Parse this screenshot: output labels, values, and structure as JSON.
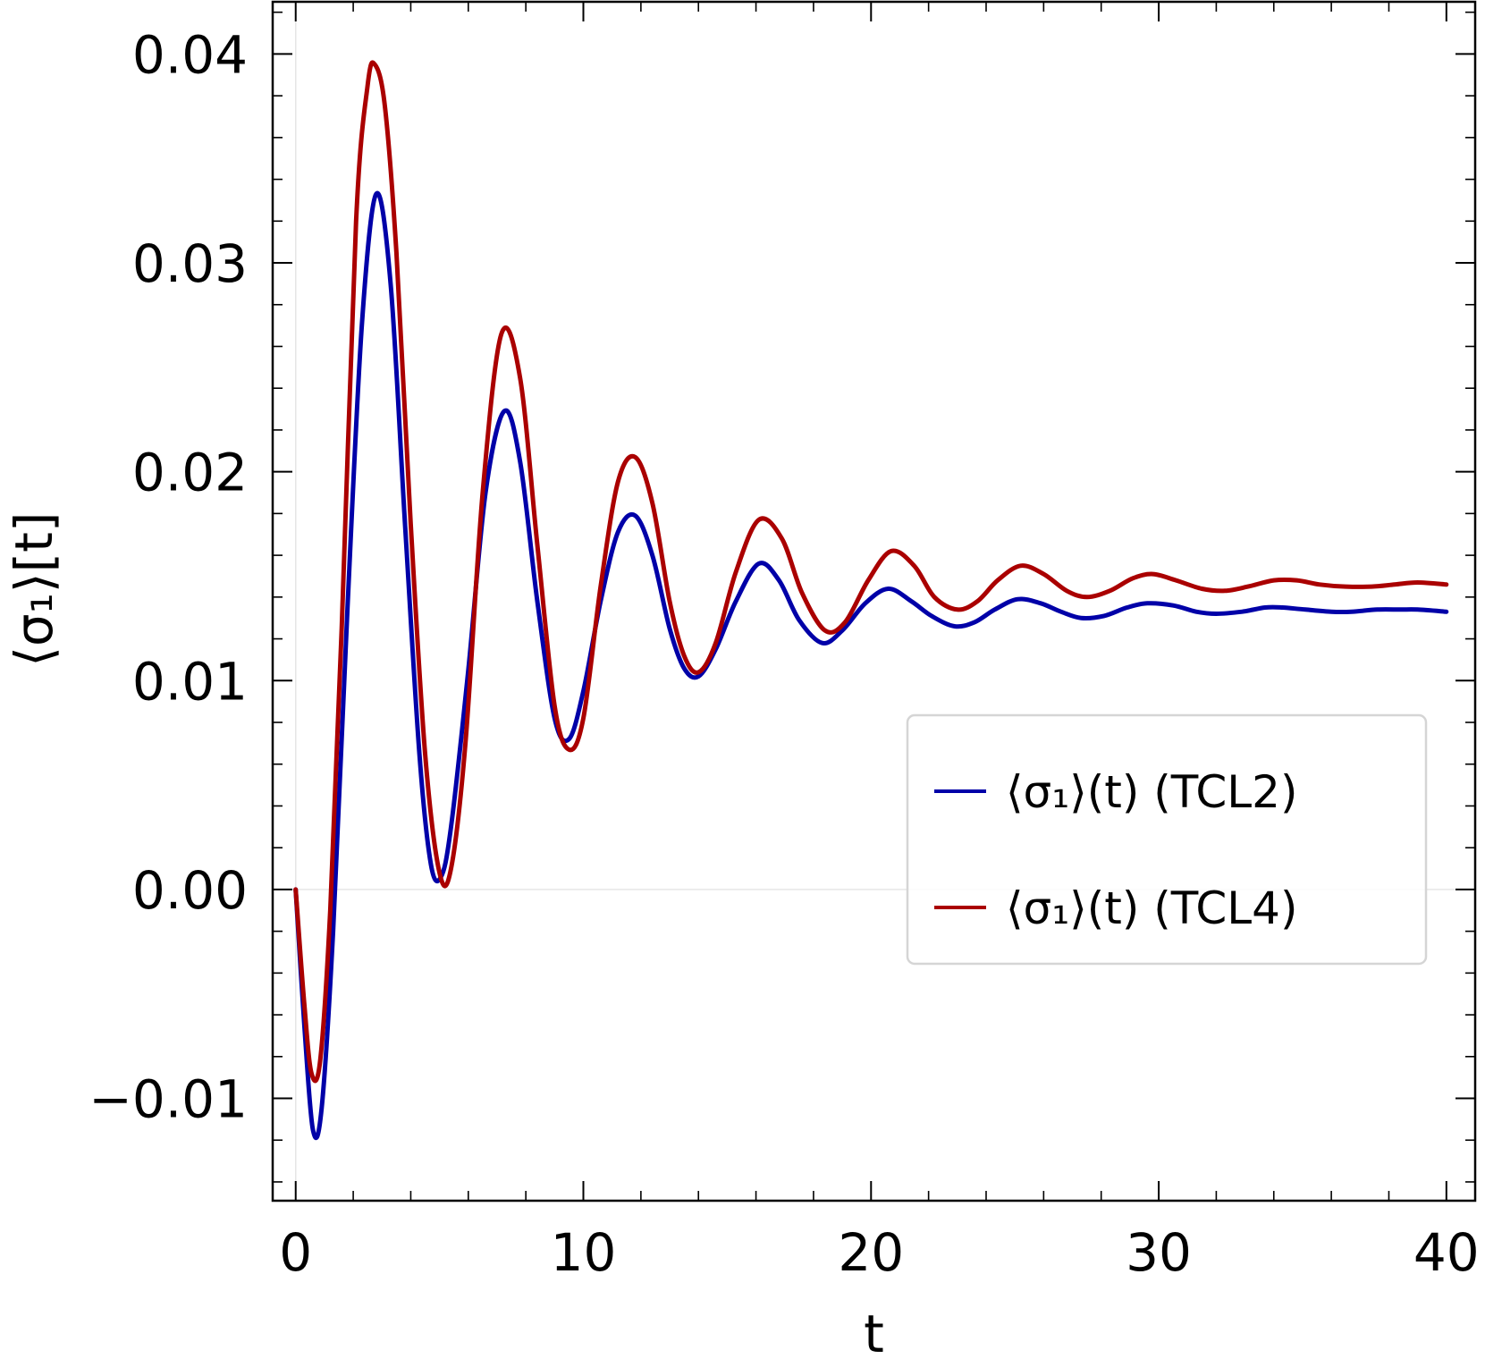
{
  "chart_data": {
    "type": "line",
    "xlabel": "t",
    "ylabel": "⟨σ₁⟩[t]",
    "xlim": [
      -0.8,
      41
    ],
    "ylim": [
      -0.0149,
      0.0425
    ],
    "x_ticks": [
      0,
      10,
      20,
      30,
      40
    ],
    "x_tick_labels": [
      "0",
      "10",
      "20",
      "30",
      "40"
    ],
    "y_ticks": [
      -0.01,
      0.0,
      0.01,
      0.02,
      0.03,
      0.04
    ],
    "y_tick_labels": [
      "−0.01",
      "0.00",
      "0.01",
      "0.02",
      "0.03",
      "0.04"
    ],
    "grid": false,
    "zero_lines": true,
    "legend_position": "center-right",
    "series": [
      {
        "name": "⟨σ₁⟩(t) (TCL2)",
        "color": "#0000a8",
        "x": [
          0,
          0.3,
          0.6,
          0.9,
          1.3,
          1.8,
          2.3,
          2.8,
          3.3,
          3.8,
          4.3,
          4.7,
          5.05,
          5.4,
          6.0,
          6.6,
          7.25,
          7.8,
          8.4,
          9.0,
          9.5,
          10.0,
          10.6,
          11.2,
          11.8,
          12.4,
          13.0,
          13.5,
          14.0,
          14.6,
          15.3,
          16.1,
          16.8,
          17.5,
          18.3,
          19.0,
          19.8,
          20.6,
          21.4,
          22.1,
          22.9,
          23.6,
          24.3,
          25.1,
          25.9,
          26.6,
          27.3,
          28.1,
          28.9,
          29.6,
          30.5,
          31.3,
          32.0,
          32.9,
          33.7,
          34.3,
          35.1,
          36.0,
          36.7,
          37.6,
          38.4,
          39.0,
          40.0
        ],
        "y": [
          0.0,
          -0.0065,
          -0.0115,
          -0.0105,
          -0.002,
          0.0135,
          0.027,
          0.0333,
          0.029,
          0.0175,
          0.0065,
          0.0012,
          0.0006,
          0.003,
          0.0105,
          0.019,
          0.0229,
          0.0205,
          0.0138,
          0.0082,
          0.0072,
          0.0095,
          0.0138,
          0.0171,
          0.0179,
          0.016,
          0.0125,
          0.0106,
          0.0102,
          0.0115,
          0.0138,
          0.0156,
          0.0148,
          0.0129,
          0.0118,
          0.0124,
          0.0137,
          0.0144,
          0.0138,
          0.0131,
          0.0126,
          0.0128,
          0.0134,
          0.0139,
          0.0137,
          0.0133,
          0.013,
          0.0131,
          0.0135,
          0.0137,
          0.0136,
          0.0133,
          0.0132,
          0.0133,
          0.0135,
          0.0135,
          0.0134,
          0.0133,
          0.0133,
          0.0134,
          0.0134,
          0.0134,
          0.0133
        ]
      },
      {
        "name": "⟨σ₁⟩(t) (TCL4)",
        "color": "#aa0000",
        "x": [
          0,
          0.3,
          0.55,
          0.85,
          1.2,
          1.6,
          2.1,
          2.5,
          2.75,
          3.1,
          3.5,
          4.0,
          4.5,
          5.0,
          5.4,
          5.9,
          6.5,
          7.15,
          7.8,
          8.4,
          9.0,
          9.5,
          10.0,
          10.6,
          11.2,
          11.8,
          12.4,
          13.0,
          13.5,
          14.0,
          14.6,
          15.3,
          16.1,
          16.9,
          17.6,
          18.4,
          19.1,
          19.9,
          20.7,
          21.5,
          22.2,
          23.0,
          23.7,
          24.4,
          25.2,
          26.0,
          26.8,
          27.5,
          28.3,
          29.1,
          29.8,
          30.6,
          31.5,
          32.3,
          33.1,
          34.0,
          34.8,
          35.6,
          36.5,
          37.4,
          38.2,
          39.0,
          40.0
        ],
        "y": [
          0.0,
          -0.0055,
          -0.0088,
          -0.0082,
          -0.001,
          0.0125,
          0.032,
          0.0385,
          0.0395,
          0.0375,
          0.0305,
          0.0175,
          0.0065,
          0.0008,
          0.001,
          0.007,
          0.019,
          0.0266,
          0.0245,
          0.0165,
          0.0088,
          0.0067,
          0.0082,
          0.0145,
          0.0195,
          0.0207,
          0.0185,
          0.0138,
          0.0112,
          0.0104,
          0.0118,
          0.0152,
          0.0177,
          0.0168,
          0.0142,
          0.0124,
          0.0128,
          0.0148,
          0.0162,
          0.0155,
          0.014,
          0.0134,
          0.0138,
          0.0148,
          0.0155,
          0.0151,
          0.0143,
          0.014,
          0.0143,
          0.0149,
          0.0151,
          0.0148,
          0.0144,
          0.0143,
          0.0145,
          0.0148,
          0.0148,
          0.0146,
          0.0145,
          0.0145,
          0.0146,
          0.0147,
          0.0146
        ]
      }
    ]
  }
}
